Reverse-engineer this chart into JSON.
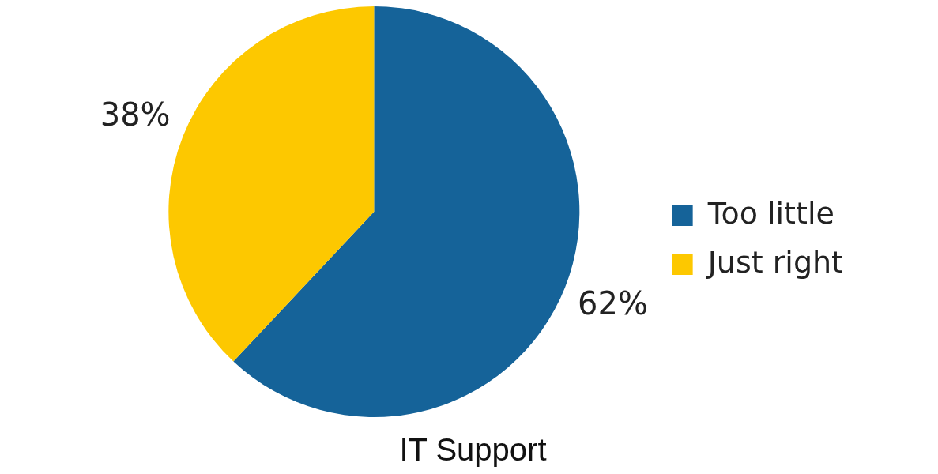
{
  "chart_data": {
    "type": "pie",
    "title": "IT Support",
    "categories": [
      "Too little",
      "Just right"
    ],
    "values": [
      62,
      38
    ],
    "colors": [
      "#156399",
      "#fdc800"
    ],
    "value_labels": [
      "62%",
      "38%"
    ],
    "legend": "right"
  }
}
